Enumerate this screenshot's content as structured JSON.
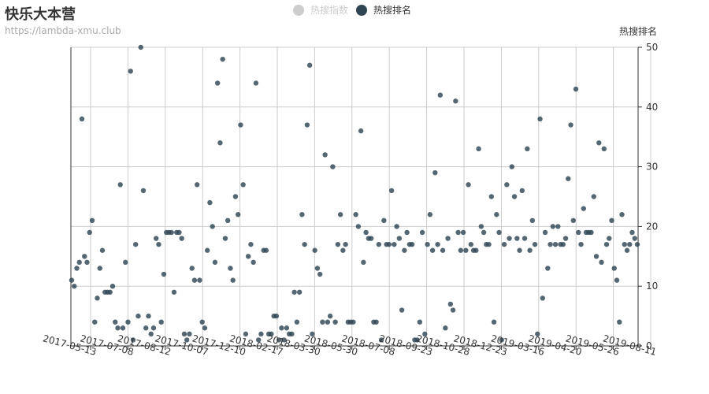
{
  "header": {
    "title": "快乐大本营",
    "subtitle": "https://lambda-xmu.club"
  },
  "legend": [
    {
      "label": "热搜指数",
      "color": "#cccccc",
      "active": false
    },
    {
      "label": "热搜排名",
      "color": "#2f4554",
      "active": true
    }
  ],
  "chart_data": {
    "type": "scatter",
    "title": "快乐大本营",
    "subtitle": "https://lambda-xmu.club",
    "ylabel": "热搜排名",
    "y_axis_position": "right",
    "ylim": [
      0,
      50
    ],
    "yticks": [
      0,
      10,
      20,
      30,
      40,
      50
    ],
    "grid": true,
    "point_color": "#2f4554",
    "x_tick_labels": [
      "2017-05-13",
      "2017-07-08",
      "2017-08-12",
      "2017-10-07",
      "2017-12-10",
      "2018-02-17",
      "2018-03-30",
      "2018-05-30",
      "2018-07-08",
      "2018-09-23",
      "2018-10-28",
      "2018-12-23",
      "2019-03-16",
      "2019-04-20",
      "2019-05-26",
      "2019-08-11"
    ],
    "series": [
      {
        "values": [
          11,
          10,
          13,
          14,
          38,
          15,
          14,
          19,
          21,
          4,
          8,
          13,
          16,
          9,
          9,
          9,
          10,
          4,
          3,
          27,
          3,
          14,
          4,
          46,
          1,
          17,
          5,
          50,
          26,
          3,
          5,
          2,
          3,
          18,
          17,
          4,
          12,
          19,
          19,
          19,
          9,
          19,
          19,
          18,
          2,
          1,
          2,
          13,
          11,
          27,
          11,
          4,
          3,
          16,
          24,
          20,
          14,
          44,
          34,
          48,
          18,
          21,
          13,
          11,
          25,
          22,
          37,
          27,
          2,
          15,
          17,
          14,
          44,
          1,
          2,
          16,
          16,
          2,
          2,
          5,
          5,
          1,
          3,
          1,
          3,
          2,
          2,
          9,
          4,
          9,
          22,
          17,
          37,
          47,
          2,
          16,
          13,
          12,
          4,
          32,
          4,
          5,
          30,
          4,
          17,
          22,
          16,
          17,
          4,
          4,
          4,
          22,
          20,
          36,
          14,
          19,
          18,
          18,
          4,
          4,
          17,
          1,
          21,
          17,
          17,
          26,
          17,
          20,
          18,
          6,
          16,
          19,
          17,
          17,
          1,
          1,
          4,
          19,
          2,
          17,
          22,
          16,
          29,
          17,
          42,
          16,
          3,
          18,
          7,
          6,
          41,
          19,
          16,
          19,
          16,
          27,
          17,
          16,
          16,
          33,
          20,
          19,
          17,
          17,
          25,
          4,
          22,
          19,
          1,
          17,
          27,
          18,
          30,
          25,
          18,
          16,
          26,
          18,
          33,
          16,
          21,
          17,
          2,
          38,
          8,
          19,
          13,
          17,
          20,
          17,
          20,
          17,
          17,
          18,
          28,
          37,
          21,
          43,
          19,
          17,
          23,
          19,
          19,
          19,
          25,
          15,
          34,
          14,
          33,
          17,
          18,
          21,
          13,
          11,
          4,
          22,
          17,
          16,
          17,
          19,
          18,
          17
        ]
      }
    ]
  }
}
